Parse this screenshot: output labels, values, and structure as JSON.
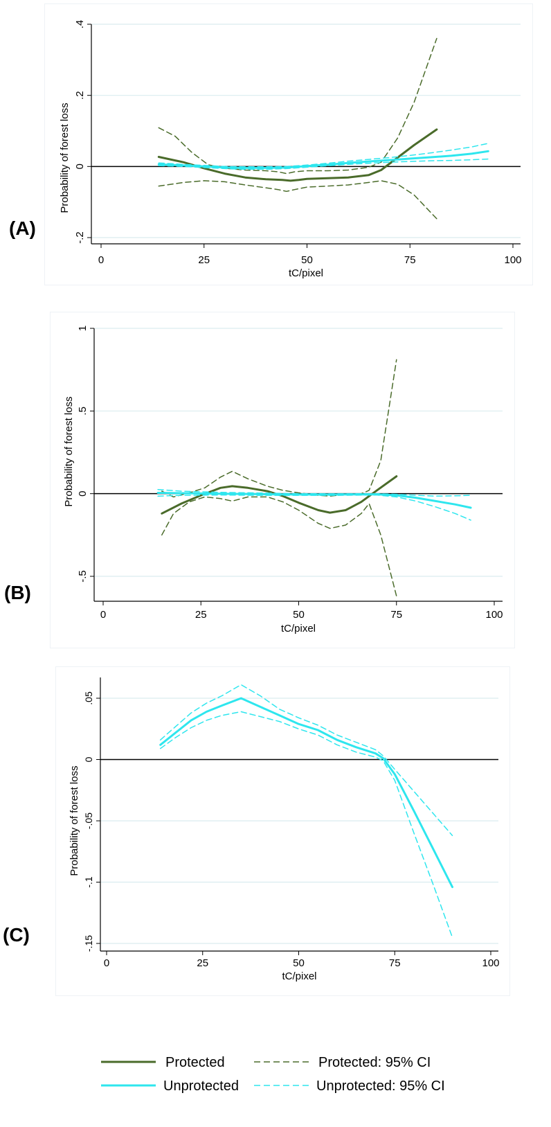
{
  "chart_data": [
    {
      "panel_label": "(A)",
      "type": "line",
      "xlabel": "tC/pixel",
      "ylabel": "Probability of forest loss",
      "xlim": [
        0,
        100
      ],
      "ylim": [
        -0.2,
        0.4
      ],
      "xticks": [
        0,
        25,
        50,
        75,
        100
      ],
      "xtick_labels": [
        "0",
        "25",
        "50",
        "75",
        "100"
      ],
      "yticks": [
        -0.2,
        0,
        0.2,
        0.4
      ],
      "ytick_labels": [
        "-.2",
        "0",
        ".2",
        ".4"
      ],
      "grid": true,
      "series": [
        {
          "name": "Protected",
          "style": "protected",
          "x": [
            14,
            20,
            25,
            30,
            35,
            40,
            44,
            46,
            48,
            50,
            55,
            60,
            65,
            68,
            72,
            76,
            81.5
          ],
          "y": [
            0.027,
            0.012,
            -0.005,
            -0.02,
            -0.031,
            -0.036,
            -0.038,
            -0.04,
            -0.038,
            -0.035,
            -0.033,
            -0.031,
            -0.024,
            -0.01,
            0.025,
            0.06,
            0.104
          ]
        },
        {
          "name": "Protected: 95% CI",
          "style": "protected_ci",
          "x": [
            14,
            18,
            22,
            26,
            30,
            35,
            40,
            43,
            45,
            47,
            50,
            55,
            60,
            65,
            68,
            72,
            76,
            81.5
          ],
          "y": [
            0.109,
            0.085,
            0.04,
            0.005,
            -0.005,
            -0.01,
            -0.012,
            -0.015,
            -0.02,
            -0.015,
            -0.012,
            -0.012,
            -0.01,
            -0.002,
            0.012,
            0.08,
            0.18,
            0.36
          ]
        },
        {
          "name": "",
          "style": "protected_ci",
          "x": [
            14,
            20,
            25,
            30,
            35,
            40,
            43,
            45,
            47,
            50,
            55,
            60,
            65,
            68,
            72,
            76,
            81.5
          ],
          "y": [
            -0.055,
            -0.045,
            -0.04,
            -0.043,
            -0.052,
            -0.06,
            -0.065,
            -0.07,
            -0.065,
            -0.058,
            -0.055,
            -0.052,
            -0.045,
            -0.04,
            -0.05,
            -0.08,
            -0.147
          ]
        },
        {
          "name": "Unprotected",
          "style": "unprotected",
          "x": [
            14,
            20,
            25,
            30,
            35,
            40,
            45,
            50,
            55,
            60,
            65,
            70,
            75,
            80,
            85,
            90,
            94
          ],
          "y": [
            0.006,
            0.003,
            0.0,
            -0.003,
            -0.004,
            -0.004,
            -0.003,
            0.001,
            0.005,
            0.01,
            0.014,
            0.018,
            0.022,
            0.026,
            0.03,
            0.036,
            0.043
          ]
        },
        {
          "name": "Unprotected: 95% CI",
          "style": "unprotected_ci",
          "x": [
            14,
            20,
            25,
            30,
            35,
            40,
            45,
            50,
            55,
            60,
            65,
            70,
            75,
            80,
            85,
            90,
            94
          ],
          "y": [
            0.01,
            0.006,
            0.003,
            0.0,
            -0.001,
            -0.001,
            0.0,
            0.004,
            0.009,
            0.015,
            0.02,
            0.025,
            0.031,
            0.038,
            0.046,
            0.055,
            0.065
          ]
        },
        {
          "name": "",
          "style": "unprotected_ci",
          "x": [
            14,
            20,
            25,
            30,
            35,
            40,
            45,
            50,
            55,
            60,
            65,
            70,
            75,
            80,
            85,
            90,
            94
          ],
          "y": [
            0.002,
            0.0,
            -0.003,
            -0.006,
            -0.008,
            -0.008,
            -0.006,
            -0.002,
            0.002,
            0.006,
            0.009,
            0.012,
            0.014,
            0.016,
            0.017,
            0.019,
            0.021
          ]
        }
      ]
    },
    {
      "panel_label": "(B)",
      "type": "line",
      "xlabel": "tC/pixel",
      "ylabel": "Probability of forest loss",
      "xlim": [
        0,
        100
      ],
      "ylim": [
        -0.5,
        1.0
      ],
      "xticks": [
        0,
        25,
        50,
        75,
        100
      ],
      "xtick_labels": [
        "0",
        "25",
        "50",
        "75",
        "100"
      ],
      "yticks": [
        -0.5,
        0,
        0.5,
        1.0
      ],
      "ytick_labels": [
        "-.5",
        "0",
        ".5",
        "1"
      ],
      "grid": true,
      "series": [
        {
          "name": "Protected",
          "style": "protected",
          "x": [
            15,
            20,
            25,
            30,
            33,
            37,
            42,
            46,
            50,
            55,
            58,
            62,
            66,
            70,
            75
          ],
          "y": [
            -0.12,
            -0.06,
            -0.01,
            0.035,
            0.045,
            0.035,
            0.015,
            -0.015,
            -0.055,
            -0.1,
            -0.115,
            -0.1,
            -0.05,
            0.02,
            0.105
          ]
        },
        {
          "name": "Protected: 95% CI",
          "style": "protected_ci",
          "x": [
            15,
            18,
            22,
            26,
            30,
            33,
            37,
            42,
            46,
            50,
            55,
            58,
            62,
            66,
            68,
            71,
            75
          ],
          "y": [
            0.015,
            -0.02,
            0.005,
            0.035,
            0.1,
            0.135,
            0.09,
            0.045,
            0.02,
            0.005,
            -0.01,
            -0.015,
            -0.005,
            0.0,
            0.02,
            0.2,
            0.81
          ]
        },
        {
          "name": "",
          "style": "protected_ci",
          "x": [
            15,
            18,
            22,
            26,
            30,
            33,
            37,
            42,
            46,
            50,
            55,
            58,
            62,
            66,
            68,
            71,
            75
          ],
          "y": [
            -0.25,
            -0.12,
            -0.05,
            -0.02,
            -0.03,
            -0.045,
            -0.02,
            -0.02,
            -0.05,
            -0.1,
            -0.18,
            -0.21,
            -0.19,
            -0.12,
            -0.06,
            -0.25,
            -0.62
          ]
        },
        {
          "name": "Unprotected",
          "style": "unprotected",
          "x": [
            14,
            20,
            30,
            40,
            50,
            60,
            70,
            75,
            80,
            85,
            90,
            94
          ],
          "y": [
            0.005,
            0.003,
            0.0,
            -0.003,
            -0.005,
            -0.005,
            -0.004,
            -0.01,
            -0.025,
            -0.045,
            -0.065,
            -0.085
          ]
        },
        {
          "name": "Unprotected: 95% CI",
          "style": "unprotected_ci",
          "x": [
            14,
            20,
            30,
            40,
            50,
            60,
            70,
            75,
            80,
            85,
            90,
            94
          ],
          "y": [
            0.025,
            0.015,
            0.008,
            0.004,
            0.0,
            -0.001,
            0.0,
            -0.004,
            -0.01,
            -0.015,
            -0.013,
            -0.01
          ]
        },
        {
          "name": "",
          "style": "unprotected_ci",
          "x": [
            14,
            20,
            30,
            40,
            50,
            60,
            70,
            75,
            80,
            85,
            90,
            94
          ],
          "y": [
            -0.015,
            -0.01,
            -0.008,
            -0.01,
            -0.01,
            -0.01,
            -0.008,
            -0.02,
            -0.045,
            -0.08,
            -0.12,
            -0.16
          ]
        }
      ]
    },
    {
      "panel_label": "(C)",
      "type": "line",
      "xlabel": "tC/pixel",
      "ylabel": "Probability of forest loss",
      "xlim": [
        0,
        100
      ],
      "ylim": [
        -0.15,
        0.05
      ],
      "xticks": [
        0,
        25,
        50,
        75,
        100
      ],
      "xtick_labels": [
        "0",
        "25",
        "50",
        "75",
        "100"
      ],
      "yticks": [
        -0.15,
        -0.1,
        -0.05,
        0,
        0.05
      ],
      "ytick_labels": [
        "-.15",
        "-.1",
        "-.05",
        "0",
        ".05"
      ],
      "grid": true,
      "series": [
        {
          "name": "Unprotected",
          "style": "unprotected",
          "x": [
            14,
            18,
            22,
            26,
            30,
            35,
            40,
            45,
            50,
            55,
            60,
            65,
            70,
            72,
            75,
            80,
            85,
            90
          ],
          "y": [
            0.012,
            0.022,
            0.032,
            0.039,
            0.044,
            0.05,
            0.043,
            0.036,
            0.029,
            0.024,
            0.016,
            0.01,
            0.005,
            0.001,
            -0.012,
            -0.042,
            -0.073,
            -0.104
          ]
        },
        {
          "name": "Unprotected: 95% CI",
          "style": "unprotected_ci",
          "x": [
            14,
            18,
            22,
            26,
            30,
            35,
            40,
            45,
            50,
            55,
            60,
            65,
            70,
            72,
            75,
            80,
            85,
            90
          ],
          "y": [
            0.016,
            0.027,
            0.038,
            0.046,
            0.052,
            0.061,
            0.052,
            0.041,
            0.034,
            0.028,
            0.02,
            0.014,
            0.008,
            0.003,
            -0.008,
            -0.026,
            -0.044,
            -0.062
          ]
        },
        {
          "name": "",
          "style": "unprotected_ci",
          "x": [
            14,
            18,
            22,
            26,
            30,
            35,
            40,
            45,
            50,
            55,
            60,
            65,
            70,
            72,
            75,
            80,
            85,
            90
          ],
          "y": [
            0.009,
            0.018,
            0.026,
            0.032,
            0.036,
            0.039,
            0.035,
            0.031,
            0.025,
            0.02,
            0.012,
            0.006,
            0.002,
            -0.001,
            -0.017,
            -0.06,
            -0.102,
            -0.145
          ]
        }
      ]
    }
  ],
  "legend": {
    "items": [
      {
        "label": "Protected",
        "style": "protected"
      },
      {
        "label": "Protected: 95% CI",
        "style": "protected_ci"
      },
      {
        "label": "Unprotected",
        "style": "unprotected"
      },
      {
        "label": "Unprotected: 95% CI",
        "style": "unprotected_ci"
      }
    ]
  },
  "colors": {
    "protected": "#4a6b2a",
    "unprotected": "#2ee6ee",
    "zero_line": "#000000",
    "gridline": "#d9ecef"
  }
}
